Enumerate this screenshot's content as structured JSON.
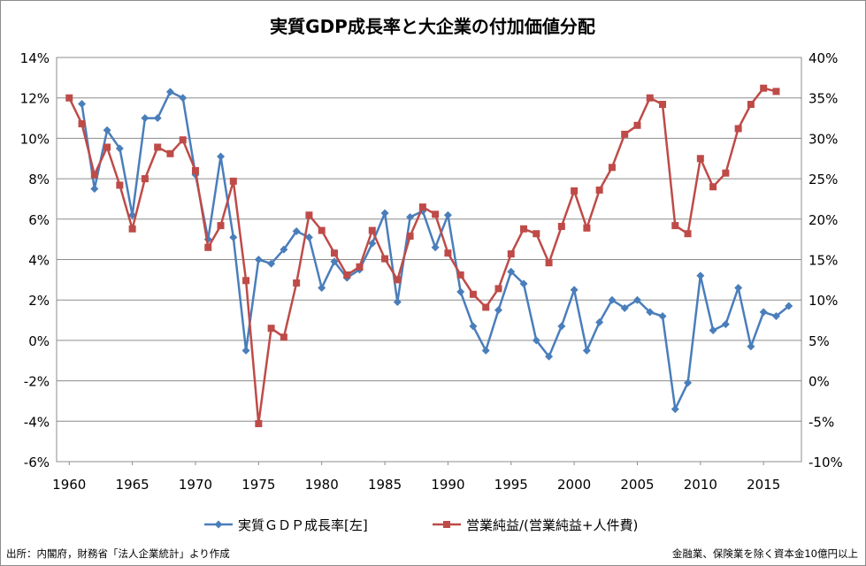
{
  "chart_data": {
    "type": "line",
    "title": "実質GDP成長率と大企業の付加価値分配",
    "x": [
      1960,
      1961,
      1962,
      1963,
      1964,
      1965,
      1966,
      1967,
      1968,
      1969,
      1970,
      1971,
      1972,
      1973,
      1974,
      1975,
      1976,
      1977,
      1978,
      1979,
      1980,
      1981,
      1982,
      1983,
      1984,
      1985,
      1986,
      1987,
      1988,
      1989,
      1990,
      1991,
      1992,
      1993,
      1994,
      1995,
      1996,
      1997,
      1998,
      1999,
      2000,
      2001,
      2002,
      2003,
      2004,
      2005,
      2006,
      2007,
      2008,
      2009,
      2010,
      2011,
      2012,
      2013,
      2014,
      2015,
      2016,
      2017
    ],
    "xticks": [
      1960,
      1965,
      1970,
      1975,
      1980,
      1985,
      1990,
      1995,
      2000,
      2005,
      2010,
      2015
    ],
    "xlim": [
      1959,
      2018
    ],
    "y_left": {
      "min": -6,
      "max": 14,
      "step": 2,
      "unit": "%"
    },
    "y_right": {
      "min": -10,
      "max": 40,
      "step": 5,
      "unit": "%"
    },
    "grid": "horizontal",
    "legend_position": "bottom",
    "series": [
      {
        "name": "実質ＧＤＰ成長率[左]",
        "axis": "left",
        "color": "#4a7ebb",
        "marker": "diamond",
        "values": [
          null,
          11.7,
          7.5,
          10.4,
          9.5,
          6.2,
          11.0,
          11.0,
          12.3,
          12.0,
          8.2,
          5.0,
          9.1,
          5.1,
          -0.5,
          4.0,
          3.8,
          4.5,
          5.4,
          5.1,
          2.6,
          3.9,
          3.1,
          3.5,
          4.8,
          6.3,
          1.9,
          6.1,
          6.4,
          4.6,
          6.2,
          2.4,
          0.7,
          -0.5,
          1.5,
          3.4,
          2.8,
          0.0,
          -0.8,
          0.7,
          2.5,
          -0.5,
          0.9,
          2.0,
          1.6,
          2.0,
          1.4,
          1.2,
          -3.4,
          -2.1,
          3.2,
          0.5,
          0.8,
          2.6,
          -0.3,
          1.4,
          1.2,
          1.7
        ]
      },
      {
        "name": "営業純益/(営業純益+人件費)",
        "axis": "right",
        "color": "#be4b48",
        "marker": "square",
        "values": [
          35.0,
          31.8,
          25.5,
          28.9,
          24.2,
          18.8,
          25.0,
          28.9,
          28.1,
          29.8,
          26.0,
          16.5,
          19.2,
          24.7,
          12.4,
          -5.3,
          6.5,
          5.4,
          12.1,
          20.5,
          18.6,
          15.8,
          13.1,
          14.1,
          18.6,
          15.1,
          12.5,
          17.9,
          21.5,
          20.6,
          15.8,
          13.1,
          10.7,
          9.1,
          11.4,
          15.7,
          18.8,
          18.2,
          14.6,
          19.1,
          23.5,
          18.9,
          23.6,
          26.4,
          30.5,
          31.6,
          35.0,
          34.2,
          19.2,
          18.2,
          27.5,
          24.0,
          25.7,
          31.2,
          34.2,
          36.2,
          35.8,
          null
        ]
      }
    ]
  },
  "footer": {
    "source": "出所：内閣府，財務省「法人企業統計」より作成",
    "note": "金融業、保険業を除く資本金10億円以上"
  }
}
